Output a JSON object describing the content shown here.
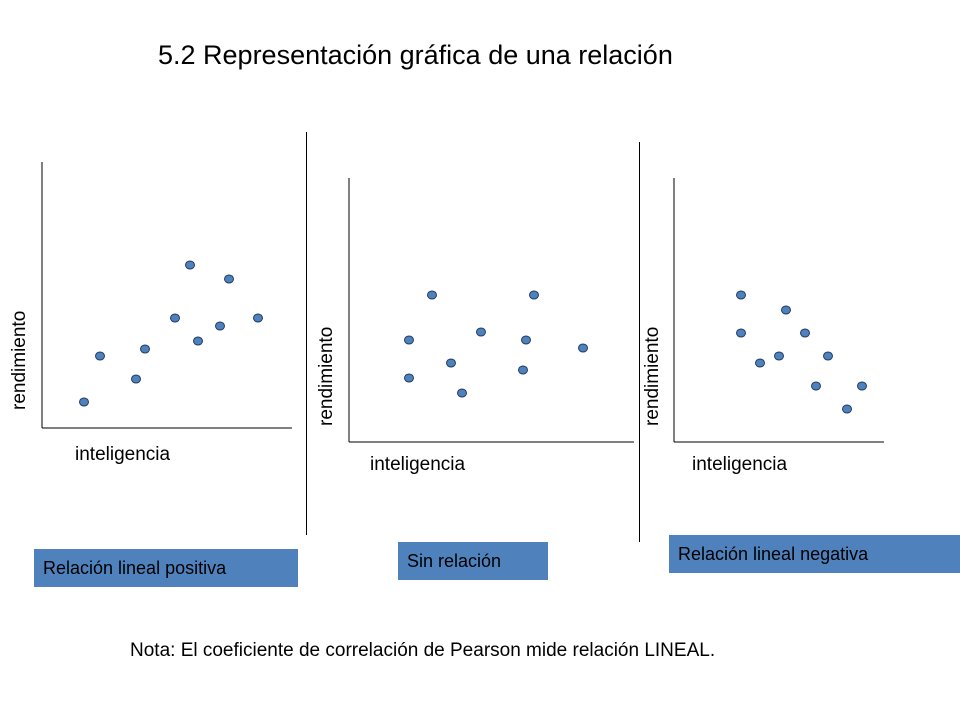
{
  "title": "5.2 Representación gráfica de una relación",
  "note": "Nota: El coeficiente de correlación de Pearson mide relación LINEAL.",
  "colors": {
    "point_fill": "#4f81bd",
    "point_stroke": "#1f3a5f",
    "box_fill": "#4f81bd"
  },
  "chart_data": [
    {
      "type": "scatter",
      "xlabel": "inteligencia",
      "ylabel": "rendimiento",
      "label": "Relación lineal positiva",
      "xlim": [
        0,
        250
      ],
      "ylim": [
        0,
        270
      ],
      "x": [
        42,
        58,
        94,
        103,
        133,
        148,
        156,
        178,
        187,
        216
      ],
      "y": [
        26,
        72,
        49,
        79,
        110,
        163,
        87,
        102,
        149,
        110
      ]
    },
    {
      "type": "scatter",
      "xlabel": "inteligencia",
      "ylabel": "rendimiento",
      "label": "Sin relación",
      "xlim": [
        0,
        285
      ],
      "ylim": [
        0,
        265
      ],
      "x": [
        60,
        60,
        83,
        102,
        113,
        132,
        174,
        177,
        185,
        234
      ],
      "y": [
        64,
        102,
        147,
        79,
        49,
        110,
        72,
        102,
        147,
        94
      ]
    },
    {
      "type": "scatter",
      "xlabel": "inteligencia",
      "ylabel": "rendimiento",
      "label": "Relación lineal negativa",
      "xlim": [
        0,
        210
      ],
      "ylim": [
        0,
        265
      ],
      "x": [
        67,
        67,
        86,
        105,
        112,
        131,
        142,
        154,
        173,
        188
      ],
      "y": [
        147,
        109,
        79,
        86,
        132,
        109,
        56,
        86,
        33,
        56
      ]
    }
  ]
}
